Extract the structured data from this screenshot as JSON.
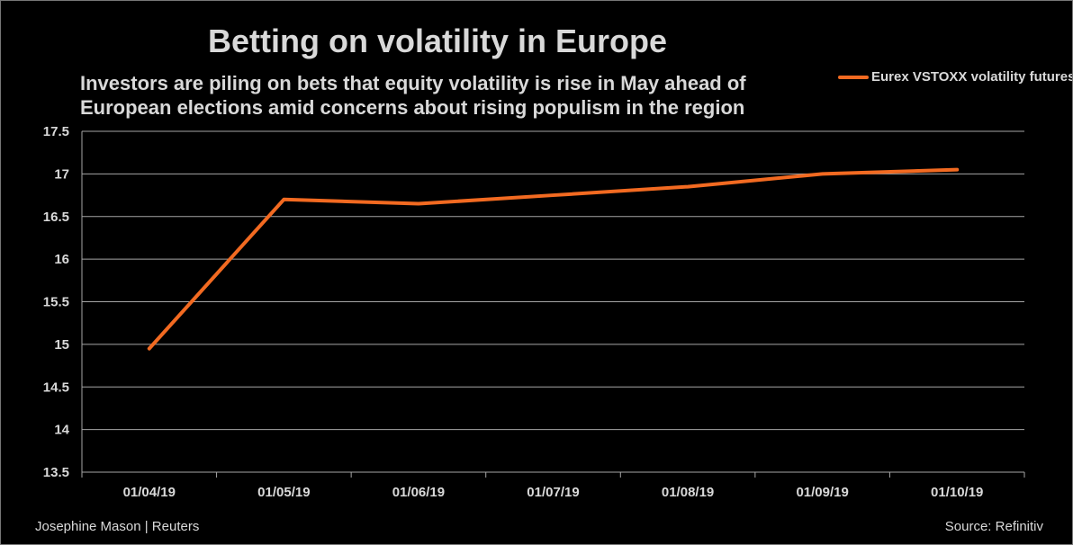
{
  "chart_data": {
    "type": "line",
    "title": "Betting on volatility in Europe",
    "subtitle": [
      "Investors are piling on bets that equity volatility is rise in May ahead of",
      "European elections amid concerns about rising populism in the region"
    ],
    "categories": [
      "01/04/19",
      "01/05/19",
      "01/06/19",
      "01/07/19",
      "01/08/19",
      "01/09/19",
      "01/10/19"
    ],
    "series": [
      {
        "name": "Eurex VSTOXX volatility futures",
        "values": [
          14.95,
          16.7,
          16.65,
          16.75,
          16.85,
          17.0,
          17.05
        ],
        "color": "#f26a21"
      }
    ],
    "ylim": [
      13.5,
      17.5
    ],
    "yticks": [
      "13.5",
      "14",
      "14.5",
      "15",
      "15.5",
      "16",
      "16.5",
      "17",
      "17.5"
    ],
    "xlabel": "",
    "ylabel": "",
    "grid": true,
    "legend": "top-right"
  },
  "footer": {
    "credit": "Josephine Mason | Reuters",
    "source": "Source: Refinitiv"
  }
}
